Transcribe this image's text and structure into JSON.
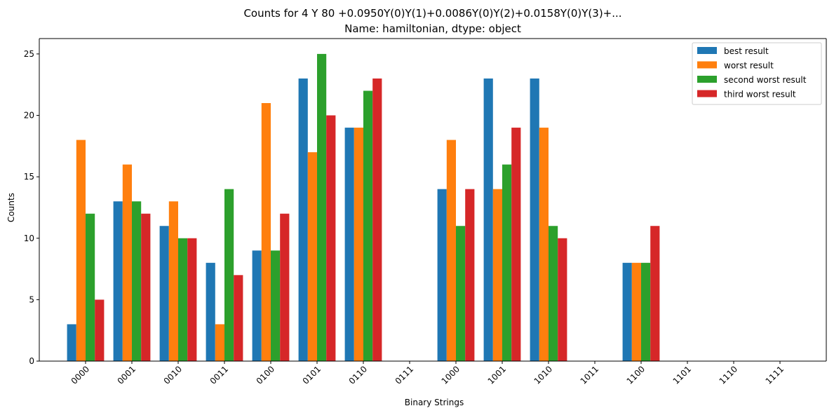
{
  "chart_data": {
    "type": "bar",
    "title_line1": "Counts for 4 Y 80    +0.0950Y(0)Y(1)+0.0086Y(0)Y(2)+0.0158Y(0)Y(3)+...",
    "title_line2": "Name: hamiltonian, dtype: object",
    "xlabel": "Binary Strings",
    "ylabel": "Counts",
    "ylim": [
      0,
      26.25
    ],
    "yticks": [
      0,
      5,
      10,
      15,
      20,
      25
    ],
    "grid": false,
    "legend_position": "top-right",
    "categories": [
      "0000",
      "0001",
      "0010",
      "0011",
      "0100",
      "0101",
      "0110",
      "0111",
      "1000",
      "1001",
      "1010",
      "1011",
      "1100",
      "1101",
      "1110",
      "1111"
    ],
    "series": [
      {
        "name": "best result",
        "color": "#1f77b4",
        "values": [
          3,
          13,
          11,
          8,
          9,
          23,
          19,
          0,
          14,
          23,
          23,
          0,
          8,
          0,
          0,
          0
        ]
      },
      {
        "name": "worst result",
        "color": "#ff7f0e",
        "values": [
          18,
          16,
          13,
          3,
          21,
          17,
          19,
          0,
          18,
          14,
          19,
          0,
          8,
          0,
          0,
          0
        ]
      },
      {
        "name": "second worst result",
        "color": "#2ca02c",
        "values": [
          12,
          13,
          10,
          14,
          9,
          25,
          22,
          0,
          11,
          16,
          11,
          0,
          8,
          0,
          0,
          0
        ]
      },
      {
        "name": "third worst result",
        "color": "#d62728",
        "values": [
          5,
          12,
          10,
          7,
          12,
          20,
          23,
          0,
          14,
          19,
          10,
          0,
          11,
          0,
          0,
          0
        ]
      }
    ]
  }
}
